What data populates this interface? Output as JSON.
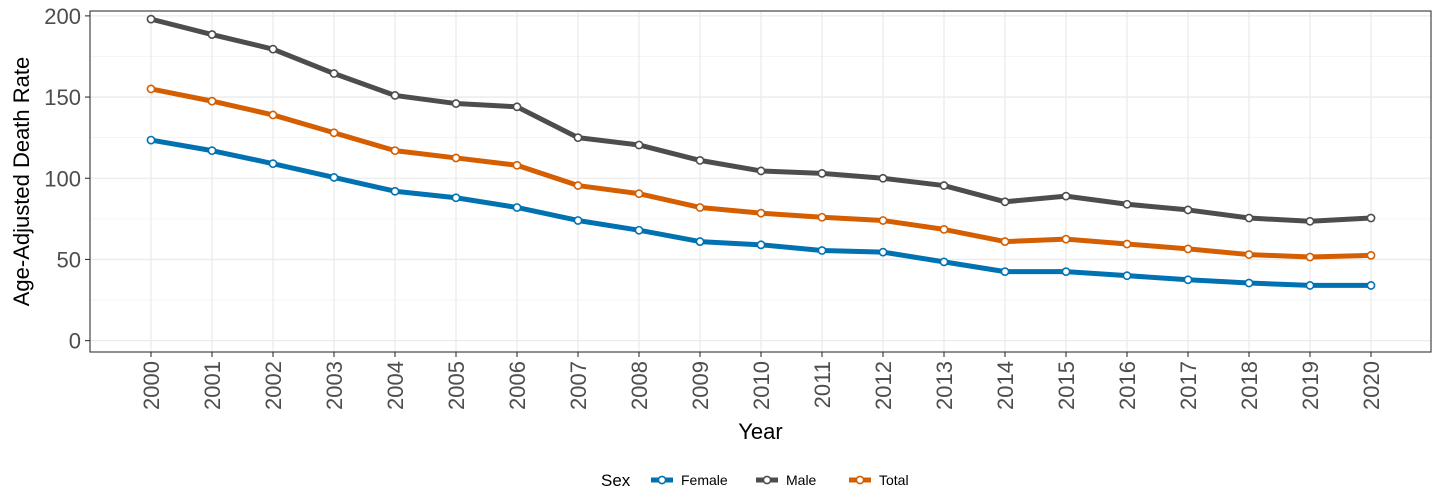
{
  "chart_data": {
    "type": "line",
    "title": "",
    "xlabel": "Year",
    "ylabel": "Age-Adjusted Death Rate",
    "x": [
      "2000",
      "2001",
      "2002",
      "2003",
      "2004",
      "2005",
      "2006",
      "2007",
      "2008",
      "2009",
      "2010",
      "2011",
      "2012",
      "2013",
      "2014",
      "2015",
      "2016",
      "2017",
      "2018",
      "2019",
      "2020"
    ],
    "ylim": [
      -7,
      203
    ],
    "yticks": [
      0,
      50,
      100,
      150,
      200
    ],
    "grid": true,
    "legend_position": "bottom",
    "legend_title": "Sex",
    "series": [
      {
        "name": "Female",
        "color": "#0072b2",
        "values": [
          123.5,
          117,
          109,
          100.5,
          92,
          88,
          82,
          74,
          68,
          61,
          59,
          55.5,
          54.5,
          48.5,
          42.5,
          42.5,
          40,
          37.5,
          35.5,
          34,
          34
        ]
      },
      {
        "name": "Male",
        "color": "#4d4d4d",
        "values": [
          198,
          188.5,
          179.5,
          164.5,
          151,
          146,
          144,
          125,
          120.5,
          111,
          104.5,
          103,
          100,
          95.5,
          85.5,
          89,
          84,
          80.5,
          75.5,
          73.5,
          75.5
        ]
      },
      {
        "name": "Total",
        "color": "#d55e00",
        "values": [
          155,
          147.5,
          139,
          128,
          117,
          112.5,
          108,
          95.5,
          90.5,
          82,
          78.5,
          76,
          74,
          68.5,
          61,
          62.5,
          59.5,
          56.5,
          53,
          51.5,
          52.5
        ]
      }
    ]
  }
}
